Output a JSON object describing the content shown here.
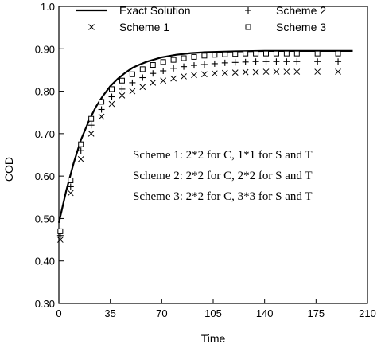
{
  "chart_data": {
    "type": "line",
    "xlabel": "Time",
    "ylabel": "COD",
    "xlim": [
      0,
      210
    ],
    "ylim": [
      0.3,
      1.0
    ],
    "x_ticks": [
      0,
      35,
      70,
      105,
      140,
      175,
      210
    ],
    "y_ticks": [
      0.3,
      0.4,
      0.5,
      0.6,
      0.7,
      0.8,
      0.9,
      1.0
    ],
    "x_tick_labels": [
      "0",
      "35",
      "70",
      "105",
      "140",
      "175",
      "210"
    ],
    "y_tick_labels": [
      "0.30",
      "0.40",
      "0.50",
      "0.60",
      "0.70",
      "0.80",
      "0.90",
      "1.0"
    ],
    "grid": false,
    "legend_position": "top",
    "series": [
      {
        "name": "Exact Solution",
        "style": "line",
        "x": [
          0,
          2,
          5,
          10,
          15,
          20,
          25,
          30,
          35,
          40,
          45,
          50,
          55,
          60,
          70,
          80,
          90,
          100,
          120,
          140,
          160,
          180,
          200
        ],
        "y": [
          0.49,
          0.52,
          0.565,
          0.63,
          0.685,
          0.727,
          0.762,
          0.789,
          0.812,
          0.829,
          0.843,
          0.855,
          0.863,
          0.87,
          0.88,
          0.886,
          0.89,
          0.892,
          0.894,
          0.895,
          0.895,
          0.895,
          0.895
        ]
      },
      {
        "name": "Scheme 1",
        "marker": "x",
        "x": [
          1,
          8,
          15,
          22,
          29,
          36,
          43,
          50,
          57,
          64,
          71,
          78,
          85,
          92,
          99,
          106,
          113,
          120,
          127,
          134,
          141,
          148,
          155,
          162,
          176,
          190
        ],
        "y": [
          0.45,
          0.56,
          0.64,
          0.7,
          0.74,
          0.77,
          0.79,
          0.8,
          0.81,
          0.82,
          0.825,
          0.83,
          0.835,
          0.838,
          0.84,
          0.842,
          0.843,
          0.844,
          0.845,
          0.845,
          0.846,
          0.846,
          0.846,
          0.846,
          0.846,
          0.846
        ]
      },
      {
        "name": "Scheme 2",
        "marker": "+",
        "x": [
          1,
          8,
          15,
          22,
          29,
          36,
          43,
          50,
          57,
          64,
          71,
          78,
          85,
          92,
          99,
          106,
          113,
          120,
          127,
          134,
          141,
          148,
          155,
          162,
          176,
          190
        ],
        "y": [
          0.46,
          0.575,
          0.66,
          0.72,
          0.757,
          0.787,
          0.805,
          0.82,
          0.832,
          0.842,
          0.848,
          0.854,
          0.858,
          0.861,
          0.863,
          0.865,
          0.867,
          0.868,
          0.869,
          0.87,
          0.87,
          0.87,
          0.87,
          0.87,
          0.87,
          0.87
        ]
      },
      {
        "name": "Scheme 3",
        "marker": "square",
        "x": [
          1,
          8,
          15,
          22,
          29,
          36,
          43,
          50,
          57,
          64,
          71,
          78,
          85,
          92,
          99,
          106,
          113,
          120,
          127,
          134,
          141,
          148,
          155,
          162,
          176,
          190
        ],
        "y": [
          0.47,
          0.59,
          0.675,
          0.735,
          0.775,
          0.805,
          0.825,
          0.84,
          0.852,
          0.862,
          0.869,
          0.874,
          0.878,
          0.881,
          0.884,
          0.886,
          0.887,
          0.888,
          0.889,
          0.889,
          0.889,
          0.889,
          0.889,
          0.889,
          0.889,
          0.889
        ]
      }
    ],
    "legend": {
      "entries": [
        {
          "label": "Exact Solution",
          "symbol": "line"
        },
        {
          "label": "Scheme 2",
          "symbol": "+"
        },
        {
          "label": "Scheme 1",
          "symbol": "x"
        },
        {
          "label": "Scheme 3",
          "symbol": "square"
        }
      ]
    },
    "annotations": [
      "Scheme 1: 2*2 for C, 1*1 for S and T",
      "Scheme 2: 2*2 for C, 2*2 for S and T",
      "Scheme 3: 2*2 for C, 3*3 for S and T"
    ]
  }
}
